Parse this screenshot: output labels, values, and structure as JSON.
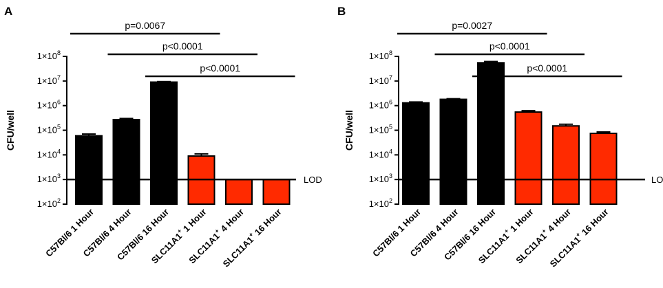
{
  "chart_data": [
    {
      "type": "bar",
      "panel": "A",
      "ylabel": "CFU/well",
      "yscale": "log",
      "ylim": [
        100,
        100000000
      ],
      "yticks": [
        {
          "base": "1×10",
          "exp": "2"
        },
        {
          "base": "1×10",
          "exp": "3"
        },
        {
          "base": "1×10",
          "exp": "4"
        },
        {
          "base": "1×10",
          "exp": "5"
        },
        {
          "base": "1×10",
          "exp": "6"
        },
        {
          "base": "1×10",
          "exp": "7"
        },
        {
          "base": "1×10",
          "exp": "8"
        }
      ],
      "categories": [
        {
          "pre": "C57Bl/6 1 Hour",
          "sup": "",
          "post": ""
        },
        {
          "pre": "C57Bl/6 4 Hour",
          "sup": "",
          "post": ""
        },
        {
          "pre": "C57Bl/6 16 Hour",
          "sup": "",
          "post": ""
        },
        {
          "pre": "SLC11A1",
          "sup": "+",
          "post": " 1 Hour"
        },
        {
          "pre": "SLC11A1",
          "sup": "+",
          "post": " 4 Hour"
        },
        {
          "pre": "SLC11A1",
          "sup": "+",
          "post": " 16 Hour"
        }
      ],
      "values": [
        60000,
        270000,
        9000000,
        9000,
        1000,
        1000
      ],
      "errors_upper": [
        70000,
        300000,
        9400000,
        11000,
        1000,
        1000
      ],
      "colors": [
        "#000000",
        "#000000",
        "#000000",
        "#ff2a00",
        "#ff2a00",
        "#ff2a00"
      ],
      "lod_value": 1000,
      "lod_label": "LOD",
      "significance": [
        {
          "label": "p=0.0067",
          "from": 0,
          "to": 3,
          "level": 0
        },
        {
          "label": "p<0.0001",
          "from": 1,
          "to": 4,
          "level": 1
        },
        {
          "label": "p<0.0001",
          "from": 2,
          "to": 5,
          "level": 2
        }
      ]
    },
    {
      "type": "bar",
      "panel": "B",
      "ylabel": "CFU/well",
      "yscale": "log",
      "ylim": [
        100,
        100000000
      ],
      "yticks": [
        {
          "base": "1×10",
          "exp": "2"
        },
        {
          "base": "1×10",
          "exp": "3"
        },
        {
          "base": "1×10",
          "exp": "4"
        },
        {
          "base": "1×10",
          "exp": "5"
        },
        {
          "base": "1×10",
          "exp": "6"
        },
        {
          "base": "1×10",
          "exp": "7"
        },
        {
          "base": "1×10",
          "exp": "8"
        }
      ],
      "categories": [
        {
          "pre": "C57Bl/6 1 Hour",
          "sup": "",
          "post": ""
        },
        {
          "pre": "C57Bl/6 4 Hour",
          "sup": "",
          "post": ""
        },
        {
          "pre": "C57Bl/6 16 Hour",
          "sup": "",
          "post": ""
        },
        {
          "pre": "SLC11A1",
          "sup": "+",
          "post": " 1 Hour"
        },
        {
          "pre": "SLC11A1",
          "sup": "+",
          "post": " 4 Hour"
        },
        {
          "pre": "SLC11A1",
          "sup": "+",
          "post": " 16 Hour"
        }
      ],
      "values": [
        1300000,
        1800000,
        55000000,
        550000,
        150000,
        75000
      ],
      "errors_upper": [
        1400000,
        1900000,
        62000000,
        620000,
        175000,
        85000
      ],
      "colors": [
        "#000000",
        "#000000",
        "#000000",
        "#ff2a00",
        "#ff2a00",
        "#ff2a00"
      ],
      "lod_value": 1000,
      "lod_label": "LOD",
      "significance": [
        {
          "label": "p=0.0027",
          "from": 0,
          "to": 3,
          "level": 0
        },
        {
          "label": "p<0.0001",
          "from": 1,
          "to": 4,
          "level": 1
        },
        {
          "label": "p<0.0001",
          "from": 2,
          "to": 5,
          "level": 2
        }
      ]
    }
  ]
}
